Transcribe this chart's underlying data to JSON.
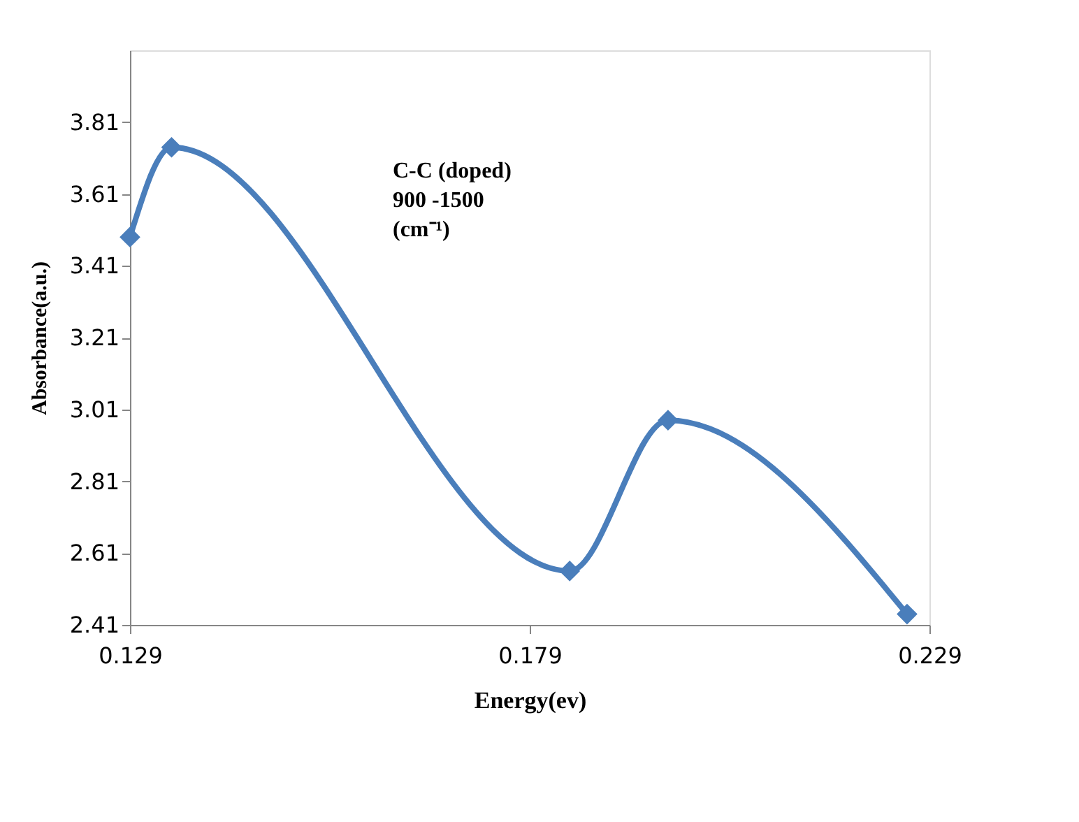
{
  "chart_data": {
    "type": "line",
    "xlabel": "Energy(ev)",
    "ylabel": "Absorbance(a.u.)",
    "series": [
      {
        "color": "#4a7ebb",
        "x": [
          0.129,
          0.1342,
          0.184,
          0.1963,
          0.2262
        ],
        "values": [
          3.49,
          3.74,
          2.56,
          2.98,
          2.44
        ]
      }
    ],
    "xlim": [
      0.129,
      0.229
    ],
    "xticks": [
      0.129,
      0.179,
      0.229
    ],
    "ylim": [
      2.41,
      4.01
    ],
    "yticks": [
      2.41,
      2.61,
      2.81,
      3.01,
      3.21,
      3.41,
      3.61,
      3.81
    ],
    "annotations": [
      "C-C (doped)\n900 -1500\n(cm⁻¹)"
    ],
    "marker": "diamond",
    "line_style": "solid",
    "grid": false
  }
}
